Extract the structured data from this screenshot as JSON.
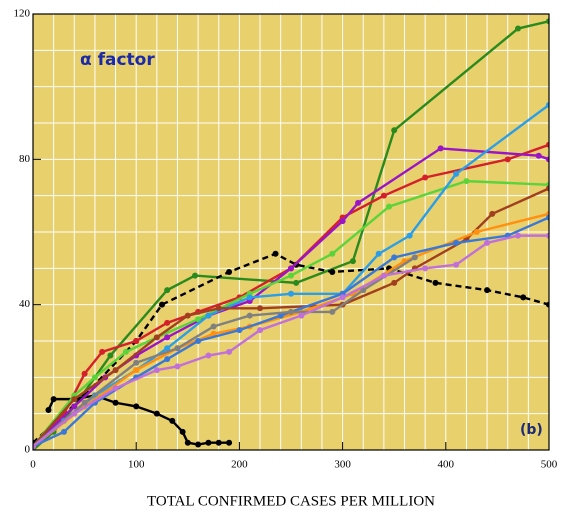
{
  "chart_data": {
    "type": "line",
    "annotations": [
      "α factor",
      "(b)"
    ],
    "xlabel": "TOTAL CONFIRMED CASES PER MILLION",
    "xlim": [
      0,
      500
    ],
    "xticks": [
      0,
      100,
      200,
      300,
      400,
      500
    ],
    "ylim": [
      0,
      120
    ],
    "yticks": [
      0,
      40,
      80,
      120
    ],
    "grid": true,
    "x_minor_step": 20,
    "y_minor_step": 10,
    "background": "#e8d06c",
    "series": [
      {
        "color": "#2a8a1e",
        "x": [
          0,
          20,
          40,
          75,
          130,
          157,
          255,
          310,
          350,
          470,
          500
        ],
        "values": [
          0,
          5,
          12,
          26,
          44,
          48,
          46,
          52,
          88,
          116,
          118
        ]
      },
      {
        "color": "#000000",
        "dash": true,
        "x": [
          0,
          50,
          100,
          125,
          190,
          235,
          255,
          290,
          345,
          390,
          440,
          475,
          500
        ],
        "values": [
          2,
          15,
          30,
          40,
          49,
          54,
          51,
          49,
          50,
          46,
          44,
          42,
          40
        ]
      },
      {
        "color": "#000000",
        "x": [
          15,
          20,
          40,
          60,
          80,
          100,
          120,
          135,
          145,
          150,
          160,
          170,
          180,
          190
        ],
        "values": [
          11,
          14,
          14,
          15,
          13,
          12,
          10,
          8,
          5,
          2,
          1.5,
          2,
          2,
          2
        ]
      },
      {
        "color": "#d4202a",
        "x": [
          0,
          30,
          50,
          67,
          100,
          130,
          160,
          200,
          250,
          300,
          340,
          380,
          460,
          500
        ],
        "values": [
          1,
          10,
          21,
          27,
          30,
          35,
          38,
          42,
          50,
          64,
          70,
          75,
          80,
          84
        ]
      },
      {
        "color": "#9a14c8",
        "x": [
          0,
          40,
          70,
          100,
          130,
          170,
          210,
          250,
          300,
          315,
          395,
          490,
          500
        ],
        "values": [
          1,
          12,
          20,
          26,
          31,
          37,
          41,
          50,
          63,
          68,
          83,
          81,
          80
        ]
      },
      {
        "color": "#5ad43a",
        "x": [
          0,
          40,
          60,
          90,
          120,
          160,
          210,
          250,
          290,
          345,
          420,
          500
        ],
        "values": [
          1,
          15,
          20,
          27,
          31,
          36,
          43,
          48,
          54,
          67,
          74,
          73
        ]
      },
      {
        "color": "#2a9ee8",
        "x": [
          0,
          30,
          60,
          100,
          130,
          170,
          210,
          250,
          300,
          335,
          365,
          410,
          500
        ],
        "values": [
          1,
          8,
          15,
          22,
          28,
          37,
          42,
          43,
          43,
          54,
          59,
          76,
          95
        ]
      },
      {
        "color": "#a0401e",
        "x": [
          0,
          40,
          80,
          120,
          150,
          180,
          220,
          300,
          350,
          370,
          420,
          445,
          500
        ],
        "values": [
          1,
          14,
          22,
          31,
          37,
          39,
          39,
          40,
          46,
          50,
          58,
          65,
          72
        ]
      },
      {
        "color": "#ff9010",
        "x": [
          0,
          50,
          100,
          140,
          175,
          210,
          260,
          310,
          360,
          430,
          500
        ],
        "values": [
          1,
          12,
          22,
          28,
          32,
          34,
          38,
          43,
          52,
          60,
          65
        ]
      },
      {
        "color": "#3a78d8",
        "x": [
          0,
          30,
          60,
          100,
          130,
          160,
          200,
          240,
          300,
          350,
          410,
          460,
          500
        ],
        "values": [
          1,
          5,
          13,
          20,
          25,
          30,
          33,
          37,
          43,
          53,
          57,
          59,
          64
        ]
      },
      {
        "color": "#808080",
        "x": [
          0,
          50,
          100,
          140,
          175,
          210,
          250,
          290,
          320,
          370
        ],
        "values": [
          1,
          13,
          24,
          28,
          34,
          37,
          38,
          38,
          44,
          53
        ]
      },
      {
        "color": "#c070d8",
        "x": [
          0,
          40,
          80,
          120,
          140,
          170,
          190,
          220,
          260,
          300,
          340,
          380,
          410,
          440,
          470,
          500
        ],
        "values": [
          1,
          10,
          17,
          22,
          23,
          26,
          27,
          33,
          37,
          42,
          48,
          50,
          51,
          57,
          59,
          59
        ]
      }
    ]
  }
}
